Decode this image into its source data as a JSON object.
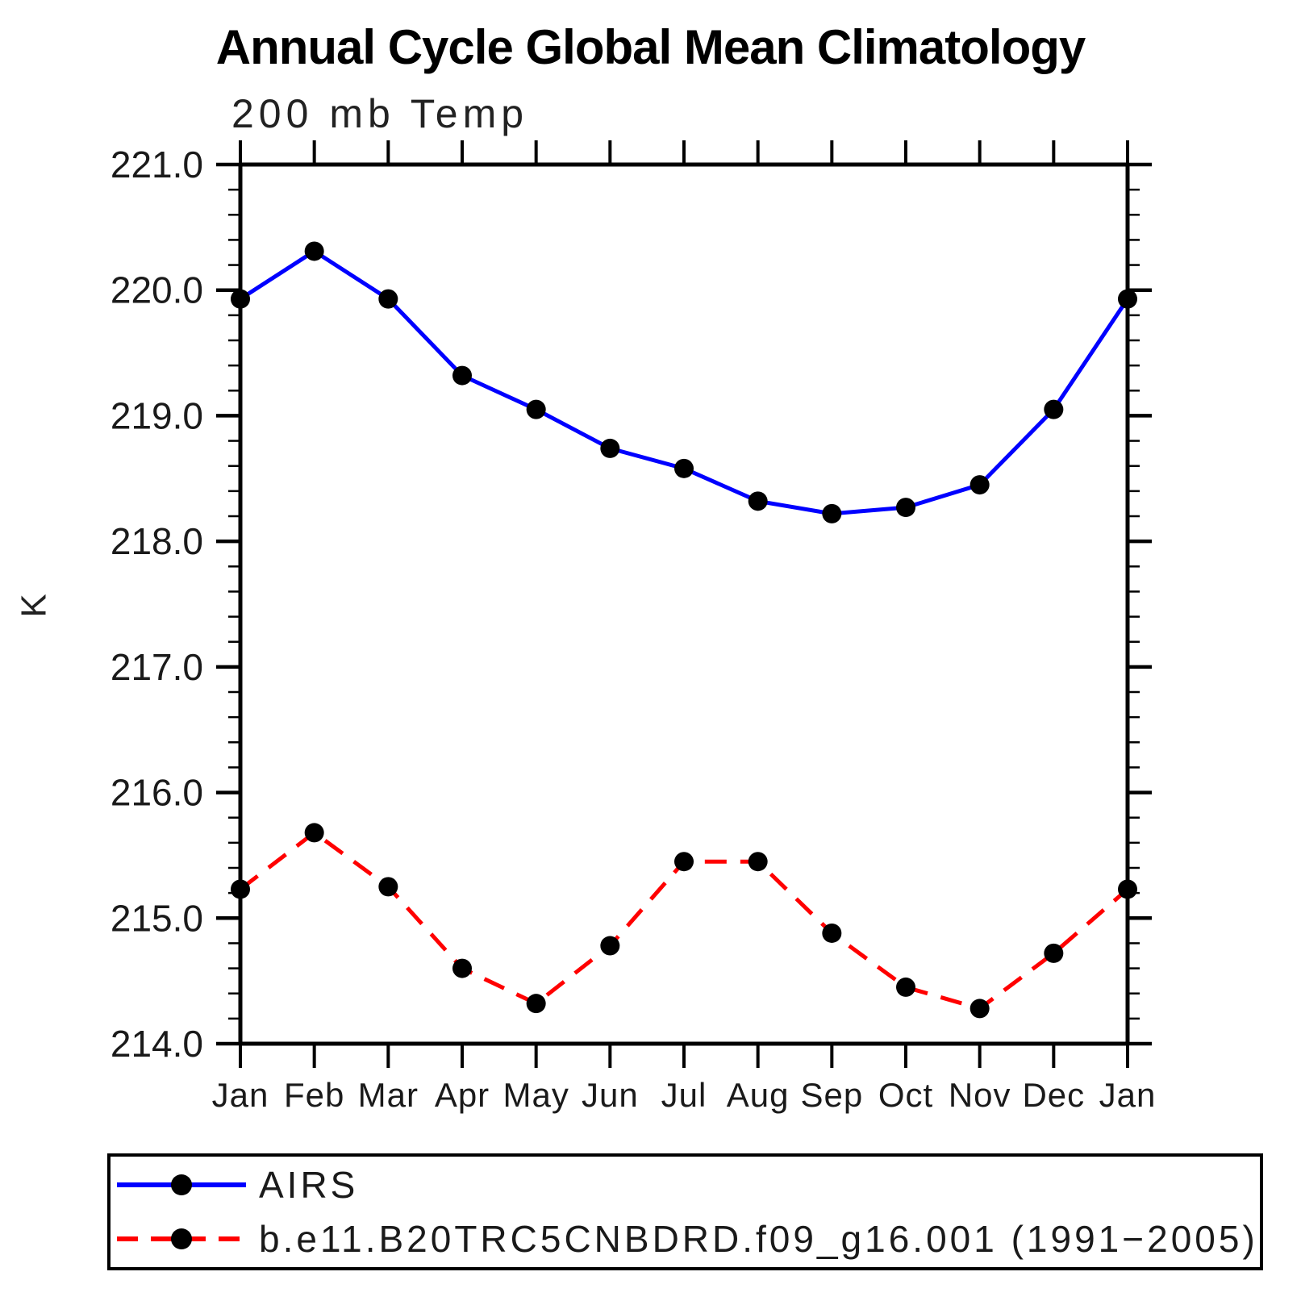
{
  "chart_data": {
    "type": "line",
    "title": "Annual Cycle Global Mean Climatology",
    "subtitle": "200 mb Temp",
    "xlabel": "",
    "ylabel": "K",
    "ylim": [
      214.0,
      221.0
    ],
    "y_major_step": 1.0,
    "y_minor_step": 0.2,
    "grid": false,
    "legend_position": "bottom",
    "axis_color": "#000000",
    "marker_color": "#000000",
    "categories": [
      "Jan",
      "Feb",
      "Mar",
      "Apr",
      "May",
      "Jun",
      "Jul",
      "Aug",
      "Sep",
      "Oct",
      "Nov",
      "Dec",
      "Jan"
    ],
    "series": [
      {
        "name": "AIRS",
        "color": "#0000ff",
        "style": "solid",
        "dashed": false,
        "values": [
          219.93,
          220.31,
          219.93,
          219.32,
          219.05,
          218.74,
          218.58,
          218.32,
          218.22,
          218.27,
          218.45,
          219.05,
          219.93
        ]
      },
      {
        "name": "b.e11.B20TRC5CNBDRD.f09_g16.001 (1991−2005)",
        "color": "#ff0000",
        "style": "dashed",
        "dashed": true,
        "values": [
          215.23,
          215.68,
          215.25,
          214.6,
          214.32,
          214.78,
          215.45,
          215.45,
          214.88,
          214.45,
          214.28,
          214.72,
          215.23
        ]
      }
    ]
  },
  "y_axis": {
    "tick_labels": [
      "221.0",
      "220.0",
      "219.0",
      "218.0",
      "217.0",
      "216.0",
      "215.0",
      "214.0"
    ]
  }
}
